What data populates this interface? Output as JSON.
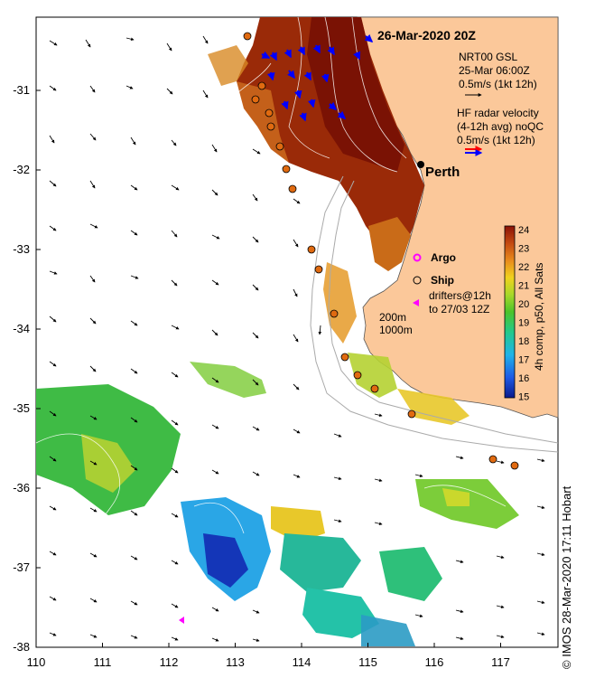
{
  "title": "26-Mar-2020 20Z",
  "city_label": "Perth",
  "legend": {
    "gsl_line1": "NRT00 GSL",
    "gsl_line2": "25-Mar 06:00Z",
    "gsl_line3": "0.5m/s (1kt 12h)",
    "hf_line1": "HF radar velocity",
    "hf_line2": "(4-12h avg) noQC",
    "hf_line3": "0.5m/s (1kt 12h)",
    "argo_label": "Argo",
    "ship_label": "Ship",
    "drifters_line1": "drifters@12h",
    "drifters_line2": "to 27/03 12Z",
    "depth_200": "200m",
    "depth_1000": "1000m"
  },
  "colorbar": {
    "title": "4h comp, p50, All Sats",
    "ticks": [
      "24",
      "23",
      "22",
      "21",
      "20",
      "19",
      "18",
      "17",
      "16",
      "15"
    ]
  },
  "axes": {
    "x_ticks": [
      "110",
      "111",
      "112",
      "113",
      "114",
      "115",
      "116",
      "117"
    ],
    "y_ticks": [
      "-31",
      "-32",
      "-33",
      "-34",
      "-35",
      "-36",
      "-37",
      "-38"
    ]
  },
  "credit": "© IMOS 28-Mar-2020 17:11 Hobart",
  "colors": {
    "land": "#fbc89a",
    "ship_marker": "#e06a10",
    "argo_marker": "#ff00ff",
    "gsl_arrow": "#000000",
    "hf_arrow_red": "#ff0000",
    "hf_arrow_blue": "#0000ff",
    "isobath": "#aaaaaa"
  }
}
